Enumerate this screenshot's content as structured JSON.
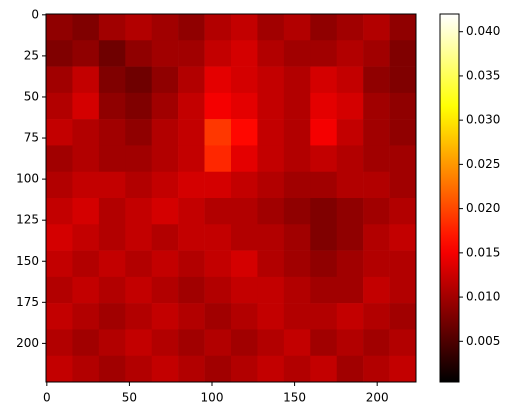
{
  "chart_data": {
    "type": "heatmap",
    "colormap": "hot",
    "xlim": [
      -0.5,
      223.5
    ],
    "ylim": [
      -0.5,
      223.5
    ],
    "invert_y": true,
    "xticks": [
      0,
      50,
      100,
      150,
      200
    ],
    "yticks": [
      0,
      25,
      50,
      75,
      100,
      125,
      150,
      175,
      200
    ],
    "clim": [
      0.0004,
      0.042
    ],
    "cticks": [
      0.005,
      {
        "value": 0.01,
        "label": "0.010"
      },
      0.015,
      {
        "value": 0.02,
        "label": "0.020"
      },
      0.025,
      {
        "value": 0.03,
        "label": "0.030"
      },
      0.035,
      {
        "value": 0.04,
        "label": "0.040"
      }
    ],
    "z": [
      [
        0.009,
        0.008,
        0.01,
        0.011,
        0.01,
        0.009,
        0.011,
        0.012,
        0.01,
        0.011,
        0.009,
        0.01,
        0.011,
        0.009
      ],
      [
        0.008,
        0.009,
        0.007,
        0.009,
        0.01,
        0.01,
        0.012,
        0.013,
        0.011,
        0.01,
        0.01,
        0.011,
        0.01,
        0.008
      ],
      [
        0.01,
        0.012,
        0.008,
        0.007,
        0.009,
        0.011,
        0.014,
        0.013,
        0.012,
        0.011,
        0.013,
        0.012,
        0.009,
        0.008
      ],
      [
        0.011,
        0.013,
        0.009,
        0.008,
        0.01,
        0.012,
        0.015,
        0.014,
        0.012,
        0.011,
        0.014,
        0.013,
        0.01,
        0.009
      ],
      [
        0.012,
        0.011,
        0.01,
        0.009,
        0.011,
        0.012,
        0.019,
        0.016,
        0.012,
        0.011,
        0.015,
        0.012,
        0.01,
        0.009
      ],
      [
        0.01,
        0.011,
        0.01,
        0.01,
        0.011,
        0.012,
        0.018,
        0.014,
        0.012,
        0.011,
        0.012,
        0.011,
        0.01,
        0.01
      ],
      [
        0.011,
        0.012,
        0.012,
        0.011,
        0.012,
        0.013,
        0.013,
        0.012,
        0.011,
        0.01,
        0.01,
        0.011,
        0.011,
        0.01
      ],
      [
        0.012,
        0.013,
        0.011,
        0.012,
        0.013,
        0.012,
        0.011,
        0.011,
        0.01,
        0.009,
        0.008,
        0.009,
        0.01,
        0.011
      ],
      [
        0.013,
        0.012,
        0.011,
        0.012,
        0.011,
        0.012,
        0.012,
        0.011,
        0.011,
        0.01,
        0.008,
        0.009,
        0.011,
        0.012
      ],
      [
        0.012,
        0.011,
        0.012,
        0.011,
        0.012,
        0.011,
        0.012,
        0.013,
        0.011,
        0.01,
        0.009,
        0.01,
        0.011,
        0.011
      ],
      [
        0.011,
        0.012,
        0.011,
        0.012,
        0.011,
        0.01,
        0.011,
        0.012,
        0.012,
        0.011,
        0.01,
        0.01,
        0.012,
        0.011
      ],
      [
        0.012,
        0.011,
        0.01,
        0.011,
        0.012,
        0.011,
        0.01,
        0.011,
        0.012,
        0.011,
        0.011,
        0.012,
        0.011,
        0.01
      ],
      [
        0.011,
        0.01,
        0.011,
        0.012,
        0.011,
        0.01,
        0.011,
        0.01,
        0.011,
        0.012,
        0.01,
        0.011,
        0.01,
        0.011
      ],
      [
        0.012,
        0.011,
        0.01,
        0.011,
        0.012,
        0.011,
        0.01,
        0.011,
        0.012,
        0.011,
        0.012,
        0.01,
        0.011,
        0.012
      ]
    ]
  }
}
